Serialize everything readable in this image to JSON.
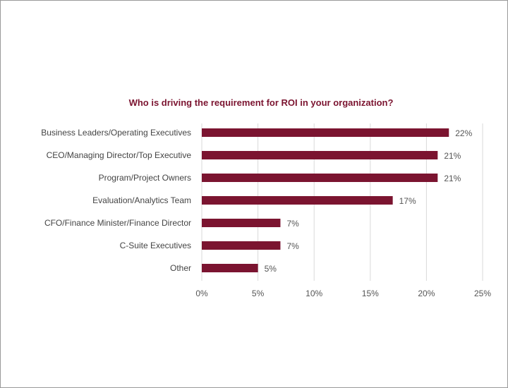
{
  "chart_data": {
    "type": "bar",
    "orientation": "horizontal",
    "title": "Who is driving the requirement for ROI in your organization?",
    "categories": [
      "Business Leaders/Operating Executives",
      "CEO/Managing Director/Top Executive",
      "Program/Project Owners",
      "Evaluation/Analytics Team",
      "CFO/Finance Minister/Finance Director",
      "C-Suite Executives",
      "Other"
    ],
    "values": [
      22,
      21,
      21,
      17,
      7,
      7,
      5
    ],
    "value_labels": [
      "22%",
      "21%",
      "21%",
      "17%",
      "7%",
      "7%",
      "5%"
    ],
    "xlim": [
      0,
      25
    ],
    "xticks": [
      0,
      5,
      10,
      15,
      20,
      25
    ],
    "xtick_labels": [
      "0%",
      "5%",
      "10%",
      "15%",
      "20%",
      "25%"
    ],
    "xlabel": "",
    "ylabel": "",
    "grid": "vertical",
    "bar_color": "#7b1430"
  }
}
